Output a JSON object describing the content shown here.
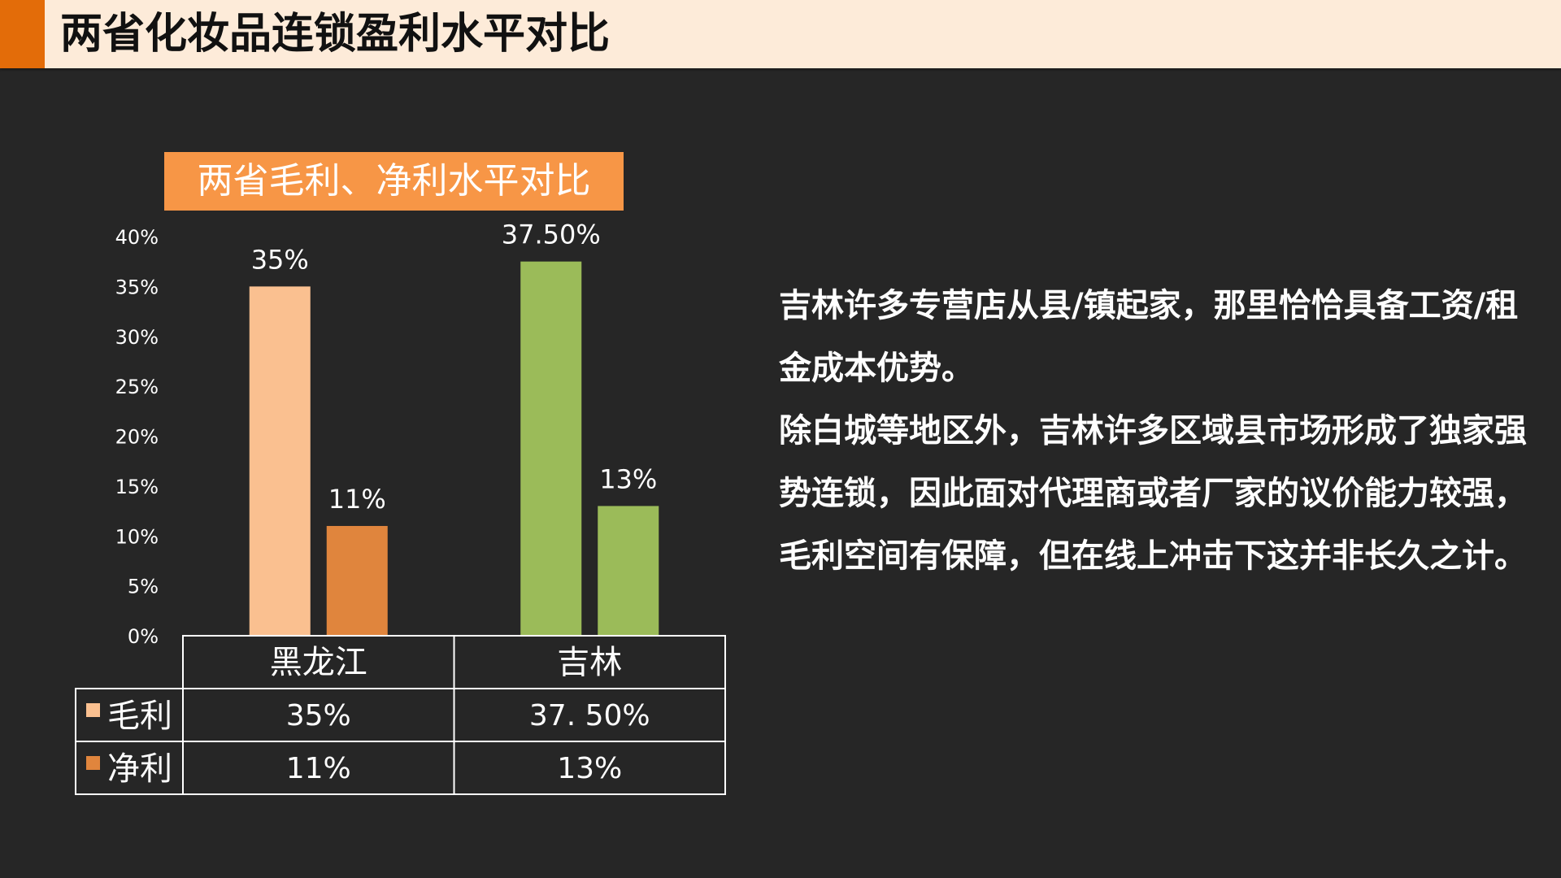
{
  "header": {
    "title": "两省化妆品连锁盈利水平对比",
    "accent_color": "#e36c09",
    "background_color": "#fdebd9"
  },
  "chart_data": {
    "type": "bar",
    "title": "两省毛利、净利水平对比",
    "categories": [
      "黑龙江",
      "吉林"
    ],
    "series": [
      {
        "name": "毛利",
        "values": [
          35,
          37.5
        ],
        "labels": [
          "35%",
          "37.50%"
        ],
        "colors": [
          "#fac090",
          "#9bbb59"
        ]
      },
      {
        "name": "净利",
        "values": [
          11,
          13
        ],
        "labels": [
          "11%",
          "13%"
        ],
        "colors": [
          "#e0853d",
          "#9bbb59"
        ]
      }
    ],
    "ylim": [
      0,
      40
    ],
    "yticks": [
      "0%",
      "5%",
      "10%",
      "15%",
      "20%",
      "25%",
      "30%",
      "35%",
      "40%"
    ],
    "data_table": {
      "rows": [
        {
          "name": "毛利",
          "color": "#fac090",
          "cells": [
            "35%",
            "37. 50%"
          ]
        },
        {
          "name": "净利",
          "color": "#e0853d",
          "cells": [
            "11%",
            "13%"
          ]
        }
      ]
    },
    "grid": false,
    "legend": "in data table"
  },
  "text_panel": {
    "paragraphs": [
      "吉林许多专营店从县/镇起家，那里恰恰具备工资/租金成本优势。",
      "除白城等地区外，吉林许多区域县市场形成了独家强势连锁，因此面对代理商或者厂家的议价能力较强，毛利空间有保障，但在线上冲击下这并非长久之计。"
    ]
  }
}
